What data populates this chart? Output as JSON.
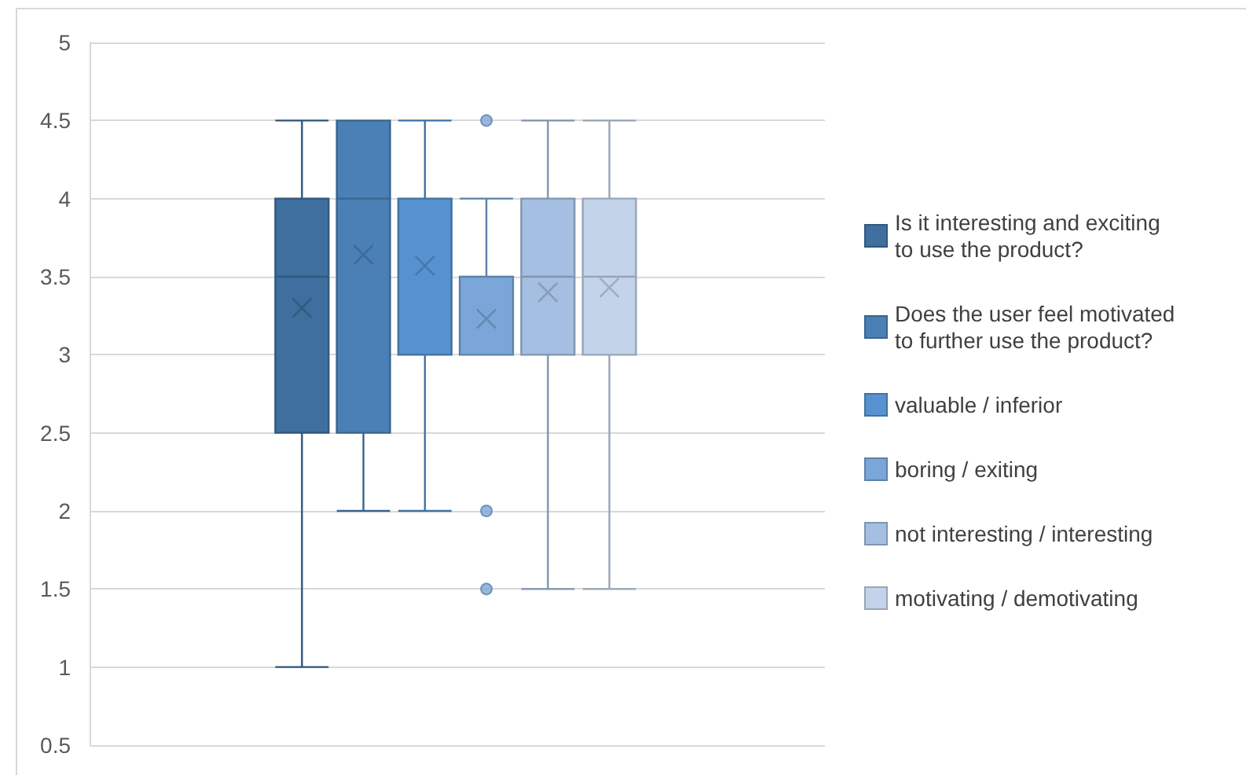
{
  "chart_data": {
    "type": "box",
    "categories": [
      null
    ],
    "series": [
      {
        "name": "Is it interesting and exciting to use the product?",
        "color": "#3f6f9e",
        "boxes": [
          {
            "low": 1,
            "q1": 2.5,
            "median": 3.5,
            "q3": 4,
            "high": 4.5,
            "mean": 3.3
          }
        ]
      },
      {
        "name": "Does the user feel motivated to further use the product?",
        "color": "#4a80b6",
        "boxes": [
          {
            "low": 2,
            "q1": 2.5,
            "median": 4,
            "q3": 4.5,
            "high": 4.5,
            "mean": 3.64
          }
        ]
      },
      {
        "name": "valuable / inferior",
        "color": "#5592cf",
        "boxes": [
          {
            "low": 2,
            "q1": 3,
            "median": 4,
            "q3": 4,
            "high": 4.5,
            "mean": 3.57
          }
        ]
      },
      {
        "name": "boring / exiting",
        "color": "#7aa6d9",
        "boxes": [
          {
            "low": 3,
            "q1": 3,
            "median": 3,
            "q3": 3.5,
            "high": 4,
            "mean": 3.23,
            "outliers": [
              4.5,
              2,
              1.5
            ]
          }
        ]
      },
      {
        "name": "not interesting / interesting",
        "color": "#a4bfe1",
        "boxes": [
          {
            "low": 1.5,
            "q1": 3,
            "median": 3.5,
            "q3": 4,
            "high": 4.5,
            "mean": 3.4
          }
        ]
      },
      {
        "name": "motivating / demotivating",
        "color": "#c3d3ea",
        "boxes": [
          {
            "low": 1.5,
            "q1": 3,
            "median": 3.5,
            "q3": 4,
            "high": 4.5,
            "mean": 3.43
          }
        ]
      }
    ],
    "ylim": [
      0.5,
      5
    ],
    "yticks": [
      0.5,
      1,
      1.5,
      2,
      2.5,
      3,
      3.5,
      4,
      4.5,
      5
    ],
    "grid": "y",
    "legend": "right"
  }
}
